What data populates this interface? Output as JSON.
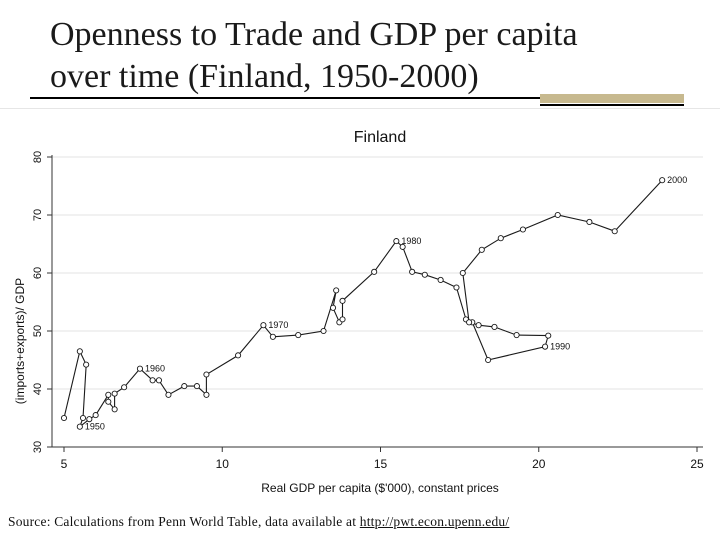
{
  "slide": {
    "title_line1": "Openness to Trade and GDP per capita",
    "title_line2": "over time (Finland, 1950-2000)",
    "source_prefix": "Source: Calculations from Penn World Table, data available at ",
    "source_link": "http://pwt.econ.upenn.edu/"
  },
  "colors": {
    "accent_bar": "#c7b98f",
    "line": "#1a1a1a"
  },
  "chart_data": {
    "type": "line",
    "title": "Finland",
    "xlabel": "Real GDP per capita ($'000), constant prices",
    "ylabel": "(imports+exports)/ GDP",
    "xlim": [
      5,
      25
    ],
    "ylim": [
      30,
      80
    ],
    "xticks": [
      5,
      10,
      15,
      20,
      25
    ],
    "yticks": [
      30,
      40,
      50,
      60,
      70,
      80
    ],
    "grid": "horizontal",
    "series": [
      {
        "points": [
          [
            5.0,
            35.0
          ],
          [
            5.5,
            46.5
          ],
          [
            5.7,
            44.2
          ],
          [
            5.6,
            35.0
          ],
          [
            5.5,
            33.5
          ],
          [
            5.8,
            34.8
          ],
          [
            6.0,
            35.5
          ],
          [
            6.4,
            39.0
          ],
          [
            6.4,
            37.8
          ],
          [
            6.6,
            36.5
          ],
          [
            6.6,
            39.2
          ],
          [
            6.9,
            40.3
          ],
          [
            7.4,
            43.5
          ],
          [
            7.8,
            41.5
          ],
          [
            8.0,
            41.5
          ],
          [
            8.3,
            39.0
          ],
          [
            8.8,
            40.5
          ],
          [
            9.2,
            40.5
          ],
          [
            9.5,
            39.0
          ],
          [
            9.5,
            42.5
          ],
          [
            10.5,
            45.8
          ],
          [
            11.3,
            51.0
          ],
          [
            11.6,
            49.0
          ],
          [
            12.4,
            49.3
          ],
          [
            13.2,
            50.0
          ],
          [
            13.6,
            57.0
          ],
          [
            13.5,
            54.0
          ],
          [
            13.7,
            51.5
          ],
          [
            13.8,
            52.0
          ],
          [
            13.8,
            55.2
          ],
          [
            14.8,
            60.2
          ],
          [
            15.5,
            65.5
          ],
          [
            15.7,
            64.5
          ],
          [
            16.0,
            60.2
          ],
          [
            16.4,
            59.7
          ],
          [
            16.9,
            58.8
          ],
          [
            17.4,
            57.5
          ],
          [
            17.7,
            52.0
          ],
          [
            17.9,
            51.5
          ],
          [
            18.4,
            45.0
          ],
          [
            20.2,
            47.3
          ],
          [
            20.3,
            49.2
          ],
          [
            19.3,
            49.3
          ],
          [
            18.6,
            50.7
          ],
          [
            18.1,
            51.0
          ],
          [
            17.8,
            51.5
          ],
          [
            17.6,
            60.0
          ],
          [
            18.2,
            64.0
          ],
          [
            18.8,
            66.0
          ],
          [
            19.5,
            67.5
          ],
          [
            20.6,
            70.0
          ],
          [
            21.6,
            68.8
          ],
          [
            22.4,
            67.2
          ],
          [
            23.9,
            76.0
          ]
        ]
      }
    ],
    "annotations": [
      {
        "text": "1950",
        "x": 5.5,
        "y": 33.5
      },
      {
        "text": "1960",
        "x": 7.4,
        "y": 43.5
      },
      {
        "text": "1970",
        "x": 11.3,
        "y": 51.0
      },
      {
        "text": "1980",
        "x": 15.5,
        "y": 65.5
      },
      {
        "text": "1990",
        "x": 20.2,
        "y": 47.3
      },
      {
        "text": "2000",
        "x": 23.9,
        "y": 76.0
      }
    ]
  }
}
